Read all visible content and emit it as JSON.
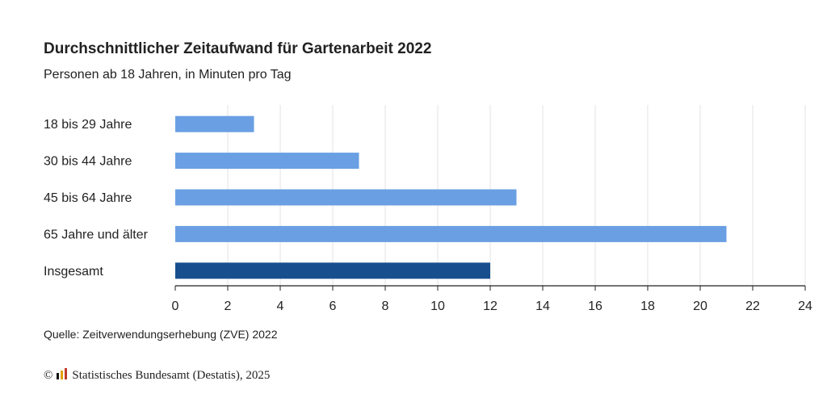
{
  "title": "Durchschnittlicher Zeitaufwand für Gartenarbeit 2022",
  "subtitle": "Personen ab 18 Jahren, in Minuten pro Tag",
  "source": "Quelle: Zeitverwendungserhebung (ZVE) 2022",
  "footer": {
    "copyright_symbol": "©",
    "publisher": "Statistisches Bundesamt (Destatis), 2025"
  },
  "colors": {
    "bar": "#6a9fe3",
    "bar_highlight": "#174f8e",
    "grid": "#e3e3e3",
    "axis": "#222222"
  },
  "chart_data": {
    "type": "bar",
    "orientation": "horizontal",
    "categories": [
      "18 bis 29 Jahre",
      "30 bis 44 Jahre",
      "45 bis 64 Jahre",
      "65 Jahre und älter",
      "Insgesamt"
    ],
    "values": [
      3,
      7,
      13,
      21,
      12
    ],
    "highlight": [
      "Insgesamt"
    ],
    "xlim": [
      0,
      24
    ],
    "xticks": [
      0,
      2,
      4,
      6,
      8,
      10,
      12,
      14,
      16,
      18,
      20,
      22,
      24
    ],
    "grid": true,
    "legend": false
  }
}
